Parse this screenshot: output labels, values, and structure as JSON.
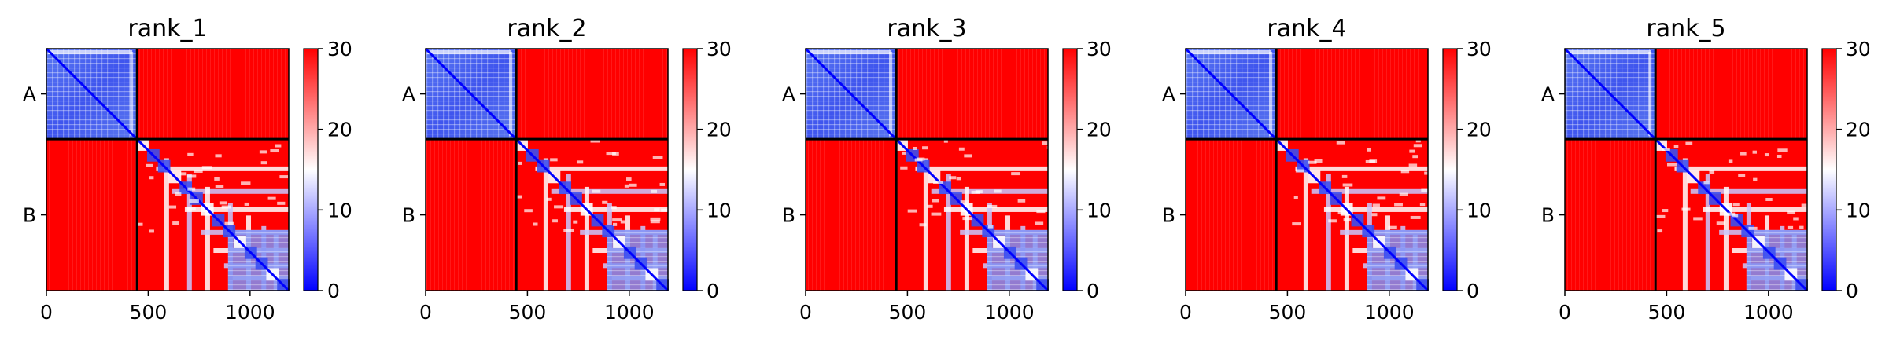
{
  "chart_data": [
    {
      "type": "heatmap",
      "title": "rank_1",
      "chains": [
        "A",
        "B"
      ],
      "chain_boundary": 445,
      "x_range": [
        0,
        1190
      ],
      "x_ticks": [
        0,
        500,
        1000
      ],
      "colorbar": {
        "ticks": [
          0,
          10,
          20,
          30
        ],
        "range": [
          0,
          30
        ],
        "colormap": "bwr"
      }
    },
    {
      "type": "heatmap",
      "title": "rank_2",
      "chains": [
        "A",
        "B"
      ],
      "chain_boundary": 445,
      "x_range": [
        0,
        1190
      ],
      "x_ticks": [
        0,
        500,
        1000
      ],
      "colorbar": {
        "ticks": [
          0,
          10,
          20,
          30
        ],
        "range": [
          0,
          30
        ],
        "colormap": "bwr"
      }
    },
    {
      "type": "heatmap",
      "title": "rank_3",
      "chains": [
        "A",
        "B"
      ],
      "chain_boundary": 445,
      "x_range": [
        0,
        1190
      ],
      "x_ticks": [
        0,
        500,
        1000
      ],
      "colorbar": {
        "ticks": [
          0,
          10,
          20,
          30
        ],
        "range": [
          0,
          30
        ],
        "colormap": "bwr"
      }
    },
    {
      "type": "heatmap",
      "title": "rank_4",
      "chains": [
        "A",
        "B"
      ],
      "chain_boundary": 445,
      "x_range": [
        0,
        1190
      ],
      "x_ticks": [
        0,
        500,
        1000
      ],
      "colorbar": {
        "ticks": [
          0,
          10,
          20,
          30
        ],
        "range": [
          0,
          30
        ],
        "colormap": "bwr"
      }
    },
    {
      "type": "heatmap",
      "title": "rank_5",
      "chains": [
        "A",
        "B"
      ],
      "chain_boundary": 445,
      "x_range": [
        0,
        1190
      ],
      "x_ticks": [
        0,
        500,
        1000
      ],
      "colorbar": {
        "ticks": [
          0,
          10,
          20,
          30
        ],
        "range": [
          0,
          30
        ],
        "colormap": "bwr"
      }
    }
  ],
  "colors": {
    "low": "#0000ff",
    "mid": "#ffffff",
    "high": "#ff0000",
    "divider": "#000000"
  }
}
